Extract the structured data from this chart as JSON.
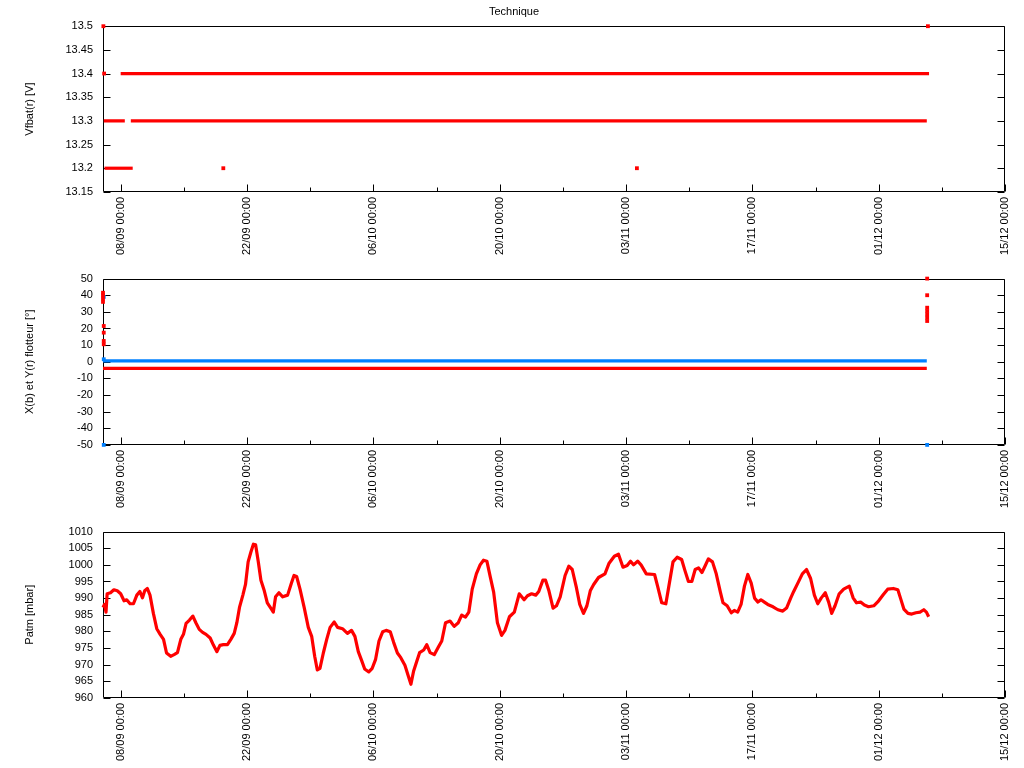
{
  "chart_data": [
    {
      "type": "line",
      "title": "Technique",
      "ylabel": "Vfbat(r) [V]",
      "xlim": [
        "--09-06T01:00",
        "--12-15"
      ],
      "xticks": [
        {
          "value": "--09-08",
          "label": "08/09 00:00"
        },
        {
          "value": "--09-15",
          "label": null
        },
        {
          "value": "--09-22",
          "label": "22/09 00:00"
        },
        {
          "value": "--09-29",
          "label": null
        },
        {
          "value": "--10-06",
          "label": "06/10 00:00"
        },
        {
          "value": "--10-13",
          "label": null
        },
        {
          "value": "--10-20",
          "label": "20/10 00:00"
        },
        {
          "value": "--10-27",
          "label": null
        },
        {
          "value": "--11-03",
          "label": "03/11 00:00"
        },
        {
          "value": "--11-10",
          "label": null
        },
        {
          "value": "--11-17",
          "label": "17/11 00:00"
        },
        {
          "value": "--11-24",
          "label": null
        },
        {
          "value": "--12-01",
          "label": "01/12 00:00"
        },
        {
          "value": "--12-08",
          "label": null
        },
        {
          "value": "--12-15",
          "label": "15/12 00:00"
        }
      ],
      "ylim": [
        13.15,
        13.5
      ],
      "yticks": [
        13.15,
        13.2,
        13.25,
        13.3,
        13.35,
        13.4,
        13.45,
        13.5
      ],
      "series": [
        {
          "type": "line",
          "color": "#ff0000",
          "x": [
            "--09-08T00:00",
            "--12-06T14:00"
          ],
          "values": [
            13.4,
            13.4
          ]
        },
        {
          "type": "line",
          "color": "#ff0000",
          "x": [
            "--09-06T03:00",
            "--09-08T11:00",
            "--09-08T20:00",
            "--09-09T03:00",
            "--12-06T08:00"
          ],
          "values": [
            13.3,
            13.3,
            null,
            13.3,
            13.3
          ]
        },
        {
          "type": "line",
          "color": "#ff0000",
          "x": [
            "--09-06T05:00",
            "--09-09T08:00"
          ],
          "values": [
            13.2,
            13.2
          ]
        },
        {
          "type": "scatter",
          "color": "#ff0000",
          "marker": "square",
          "x": [
            "--09-06T02:00",
            "--09-06T04:00",
            "--09-19T09:00",
            "--11-04T05:00",
            "--12-06T11:00"
          ],
          "values": [
            13.5,
            13.4,
            13.2,
            13.2,
            13.5
          ]
        }
      ]
    },
    {
      "type": "line",
      "ylabel": "X(b) et Y(r) flotteur [°]",
      "xlim": [
        "--09-06T01:00",
        "--12-15"
      ],
      "xticks": [
        {
          "value": "--09-08",
          "label": "08/09 00:00"
        },
        {
          "value": "--09-15",
          "label": null
        },
        {
          "value": "--09-22",
          "label": "22/09 00:00"
        },
        {
          "value": "--09-29",
          "label": null
        },
        {
          "value": "--10-06",
          "label": "06/10 00:00"
        },
        {
          "value": "--10-13",
          "label": null
        },
        {
          "value": "--10-20",
          "label": "20/10 00:00"
        },
        {
          "value": "--10-27",
          "label": null
        },
        {
          "value": "--11-03",
          "label": "03/11 00:00"
        },
        {
          "value": "--11-10",
          "label": null
        },
        {
          "value": "--11-17",
          "label": "17/11 00:00"
        },
        {
          "value": "--11-24",
          "label": null
        },
        {
          "value": "--12-01",
          "label": "01/12 00:00"
        },
        {
          "value": "--12-08",
          "label": null
        },
        {
          "value": "--12-15",
          "label": "15/12 00:00"
        }
      ],
      "ylim": [
        -50,
        50
      ],
      "yticks": [
        -50,
        -40,
        -30,
        -20,
        -10,
        0,
        10,
        20,
        30,
        40,
        50
      ],
      "series": [
        {
          "type": "line",
          "color": "#0080ff",
          "x": [
            "--09-06T01:00",
            "--12-06T08:00"
          ],
          "values": [
            0.5,
            0.5
          ]
        },
        {
          "type": "line",
          "color": "#ff0000",
          "x": [
            "--09-06T01:00",
            "--12-06T08:00"
          ],
          "values": [
            -4,
            -4
          ]
        },
        {
          "type": "scatter",
          "color": "#ff0000",
          "marker": "square",
          "x": [
            "--09-06T01:00",
            "--09-06T01:00",
            "--09-06T01:00",
            "--09-06T01:00",
            "--09-06T03:00",
            "--09-06T03:00",
            "--09-06T03:00",
            "--09-06T03:00",
            "--12-06T09:00",
            "--12-06T09:00",
            "--12-06T09:00",
            "--12-06T09:00",
            "--12-06T09:00",
            "--12-06T09:00",
            "--12-06T09:00"
          ],
          "values": [
            36,
            38,
            40,
            41.5,
            21.5,
            17.5,
            12.5,
            10.5,
            50,
            40,
            32.5,
            30.5,
            28.5,
            26.5,
            24.5
          ]
        },
        {
          "type": "scatter",
          "color": "#0080ff",
          "marker": "square",
          "x": [
            "--09-06T03:00",
            "--09-06T03:00",
            "--09-06T03:00",
            "--12-06T09:00"
          ],
          "values": [
            39,
            1.5,
            -50,
            -50
          ]
        }
      ]
    },
    {
      "type": "line",
      "ylabel": "Patm [mbar]",
      "xlim": [
        "--09-06T01:00",
        "--12-15"
      ],
      "xticks": [
        {
          "value": "--09-08",
          "label": "08/09 00:00"
        },
        {
          "value": "--09-15",
          "label": null
        },
        {
          "value": "--09-22",
          "label": "22/09 00:00"
        },
        {
          "value": "--09-29",
          "label": null
        },
        {
          "value": "--10-06",
          "label": "06/10 00:00"
        },
        {
          "value": "--10-13",
          "label": null
        },
        {
          "value": "--10-20",
          "label": "20/10 00:00"
        },
        {
          "value": "--10-27",
          "label": null
        },
        {
          "value": "--11-03",
          "label": "03/11 00:00"
        },
        {
          "value": "--11-10",
          "label": null
        },
        {
          "value": "--11-17",
          "label": "17/11 00:00"
        },
        {
          "value": "--11-24",
          "label": null
        },
        {
          "value": "--12-01",
          "label": "01/12 00:00"
        },
        {
          "value": "--12-08",
          "label": null
        },
        {
          "value": "--12-15",
          "label": "15/12 00:00"
        }
      ],
      "ylim": [
        960,
        1010
      ],
      "yticks": [
        960,
        965,
        970,
        975,
        980,
        985,
        990,
        995,
        1000,
        1005,
        1010
      ],
      "color": "#ff0000",
      "x": [
        "--09-06T01:00",
        "--09-06T05:00",
        "--09-06T09:00",
        "--09-06T12:00",
        "--09-06T21:00",
        "--09-07T06:00",
        "--09-07T15:00",
        "--09-08T00:00",
        "--09-08T09:00",
        "--09-08T16:00",
        "--09-09T01:00",
        "--09-09T10:00",
        "--09-09T19:00",
        "--09-10T03:00",
        "--09-10T10:00",
        "--09-10T16:00",
        "--09-10T23:00",
        "--09-11T06:00",
        "--09-11T15:00",
        "--09-12T00:00",
        "--09-12T09:00",
        "--09-12T18:00",
        "--09-13T02:00",
        "--09-13T13:00",
        "--09-13T22:00",
        "--09-14T07:00",
        "--09-14T16:00",
        "--09-14T23:00",
        "--09-15T06:00",
        "--09-15T15:00",
        "--09-16T00:00",
        "--09-16T08:00",
        "--09-16T17:00",
        "--09-17T02:00",
        "--09-17T11:00",
        "--09-17T22:00",
        "--09-18T07:00",
        "--09-18T16:00",
        "--09-19T00:00",
        "--09-19T09:00",
        "--09-19T20:00",
        "--09-20T05:00",
        "--09-20T14:00",
        "--09-20T21:00",
        "--09-21T04:00",
        "--09-21T13:00",
        "--09-21T20:00",
        "--09-22T03:00",
        "--09-22T10:00",
        "--09-22T17:00",
        "--09-22T23:00",
        "--09-23T06:00",
        "--09-23T13:00",
        "--09-23T22:00",
        "--09-24T06:00",
        "--09-24T17:00",
        "--09-24T22:00",
        "--09-25T04:00",
        "--09-25T13:00",
        "--09-25T23:00",
        "--09-26T12:00",
        "--09-26T22:00",
        "--09-27T05:00",
        "--09-27T12:00",
        "--09-27T21:00",
        "--09-28T08:00",
        "--09-28T19:00",
        "--09-29T04:00",
        "--09-29T12:00",
        "--09-29T19:00",
        "--09-30T02:00",
        "--09-30T11:00",
        "--09-30T20:00",
        "--10-01T05:00",
        "--10-01T16:00",
        "--10-02T01:00",
        "--10-02T14:00",
        "--10-03T03:00",
        "--10-03T14:00",
        "--10-03T23:00",
        "--10-04T08:00",
        "--10-04T17:00",
        "--10-05T01:00",
        "--10-05T12:00",
        "--10-05T21:00",
        "--10-06T06:00",
        "--10-06T15:00",
        "--10-07T01:00",
        "--10-07T10:00",
        "--10-07T21:00",
        "--10-08T06:00",
        "--10-08T16:00",
        "--10-09T01:00",
        "--10-09T12:00",
        "--10-09T21:00",
        "--10-10T04:00",
        "--10-10T11:00",
        "--10-10T20:00",
        "--10-11T03:00",
        "--10-11T14:00",
        "--10-11T22:00",
        "--10-12T07:00",
        "--10-12T18:00",
        "--10-13T05:00",
        "--10-13T14:00",
        "--10-14T00:00",
        "--10-14T12:00",
        "--10-14T23:00",
        "--10-15T10:00",
        "--10-15T19:00",
        "--10-16T05:00",
        "--10-16T14:00",
        "--10-16T23:00",
        "--10-17T10:00",
        "--10-17T20:00",
        "--10-18T05:00",
        "--10-18T14:00",
        "--10-18T23:00",
        "--10-19T08:00",
        "--10-19T18:00",
        "--10-20T05:00",
        "--10-20T14:00",
        "--10-21T02:00",
        "--10-21T15:00",
        "--10-22T04:00",
        "--10-22T17:00",
        "--10-23T02:00",
        "--10-23T13:00",
        "--10-24T00:00",
        "--10-24T08:00",
        "--10-24T19:00",
        "--10-25T02:00",
        "--10-25T11:00",
        "--10-25T22:00",
        "--10-26T07:00",
        "--10-26T17:00",
        "--10-27T06:00",
        "--10-27T16:00",
        "--10-28T01:00",
        "--10-28T12:00",
        "--10-28T21:00",
        "--10-29T07:00",
        "--10-29T16:00",
        "--10-30T01:00",
        "--10-30T10:00",
        "--10-30T23:00",
        "--10-31T16:00",
        "--11-01T03:00",
        "--11-01T17:00",
        "--11-02T04:00",
        "--11-02T16:00",
        "--11-03T03:00",
        "--11-03T12:00",
        "--11-03T20:00",
        "--11-04T07:00",
        "--11-04T16:00",
        "--11-05T06:00",
        "--11-06T04:00",
        "--11-06T12:00",
        "--11-06T23:00",
        "--11-07T10:00",
        "--11-07T18:00",
        "--11-08T05:00",
        "--11-08T16:00",
        "--11-09T04:00",
        "--11-09T13:00",
        "--11-09T22:00",
        "--11-10T07:00",
        "--11-10T16:00",
        "--11-11T01:00",
        "--11-11T10:00",
        "--11-11T18:00",
        "--11-12T03:00",
        "--11-12T14:00",
        "--11-13T00:00",
        "--11-13T11:00",
        "--11-13T18:00",
        "--11-14T05:00",
        "--11-14T16:00",
        "--11-15T00:00",
        "--11-15T09:00",
        "--11-15T18:00",
        "--11-16T03:00",
        "--11-16T12:00",
        "--11-16T21:00",
        "--11-17T06:00",
        "--11-17T15:00",
        "--11-17T23:00",
        "--11-18T08:00",
        "--11-18T17:00",
        "--11-19T07:00",
        "--11-19T20:00",
        "--11-20T09:00",
        "--11-20T19:00",
        "--11-21T06:00",
        "--11-21T14:00",
        "--11-22T01:00",
        "--11-22T13:00",
        "--11-23T00:00",
        "--11-23T11:00",
        "--11-23T21:00",
        "--11-24T06:00",
        "--11-24T15:00",
        "--11-25T02:00",
        "--11-25T11:00",
        "--11-25T19:00",
        "--11-26T04:00",
        "--11-26T15:00",
        "--11-27T03:00",
        "--11-27T18:00",
        "--11-28T04:00",
        "--11-28T13:00",
        "--11-29T00:00",
        "--11-29T10:00",
        "--11-29T21:00",
        "--11-30T11:00",
        "--12-01T00:00",
        "--12-01T12:00",
        "--12-02T00:00",
        "--12-02T15:00",
        "--12-03T03:00",
        "--12-03T10:00",
        "--12-03T19:00",
        "--12-04T06:00",
        "--12-04T16:00",
        "--12-05T03:00",
        "--12-05T14:00",
        "--12-06T00:00",
        "--12-06T07:00",
        "--12-06T13:00"
      ],
      "values": [
        987.2,
        988.1,
        985.8,
        991.3,
        991.6,
        992.5,
        992.2,
        991.3,
        989.2,
        989.5,
        988.3,
        988.3,
        990.9,
        992.0,
        990.1,
        992.2,
        992.9,
        990.9,
        985.4,
        980.8,
        979.1,
        977.6,
        973.5,
        972.5,
        973.0,
        973.6,
        977.6,
        979.1,
        982.4,
        983.4,
        984.6,
        982.6,
        980.6,
        979.7,
        979.1,
        978.0,
        975.8,
        973.9,
        975.8,
        976.0,
        976.0,
        977.6,
        979.4,
        982.6,
        987.2,
        990.9,
        994.1,
        1000.9,
        1003.7,
        1006.2,
        1006.0,
        1000.9,
        995.4,
        992.2,
        988.6,
        986.7,
        985.8,
        990.4,
        991.6,
        990.4,
        990.9,
        994.5,
        996.8,
        996.5,
        992.7,
        987.2,
        981.2,
        978.5,
        972.5,
        968.4,
        968.9,
        973.5,
        977.6,
        981.2,
        982.8,
        981.2,
        980.8,
        979.4,
        980.3,
        978.5,
        973.9,
        971.2,
        968.7,
        967.8,
        968.9,
        971.6,
        977.1,
        979.9,
        980.3,
        979.9,
        976.7,
        973.5,
        972.1,
        969.8,
        966.6,
        964.1,
        968.0,
        971.2,
        973.6,
        974.4,
        976.0,
        973.6,
        973.0,
        975.3,
        977.1,
        982.6,
        983.1,
        981.5,
        982.6,
        984.9,
        984.3,
        985.8,
        992.7,
        997.3,
        1000.0,
        1001.4,
        1001.1,
        996.4,
        991.8,
        982.6,
        978.8,
        980.3,
        984.4,
        985.8,
        991.3,
        989.5,
        990.7,
        991.3,
        990.9,
        992.0,
        995.4,
        995.4,
        992.2,
        987.0,
        987.7,
        990.4,
        996.8,
        999.6,
        998.6,
        993.2,
        988.1,
        985.4,
        987.7,
        992.2,
        994.1,
        996.2,
        997.3,
        1000.5,
        1002.6,
        1003.2,
        999.3,
        999.8,
        1001.1,
        1000.0,
        1001.1,
        1000.0,
        997.3,
        997.1,
        993.6,
        988.6,
        988.3,
        993.6,
        1000.9,
        1002.3,
        1001.6,
        998.2,
        995.0,
        995.0,
        998.6,
        999.1,
        997.7,
        999.6,
        1001.8,
        1000.9,
        997.3,
        991.8,
        988.6,
        987.7,
        985.6,
        986.3,
        985.8,
        988.1,
        993.6,
        997.1,
        994.5,
        990.0,
        988.8,
        989.5,
        988.8,
        988.1,
        987.4,
        986.5,
        986.1,
        987.0,
        990.0,
        992.0,
        994.5,
        997.3,
        998.6,
        995.9,
        990.9,
        988.3,
        990.0,
        991.6,
        988.8,
        985.4,
        987.7,
        991.3,
        992.7,
        993.6,
        990.1,
        988.6,
        988.8,
        987.9,
        987.4,
        987.7,
        989.2,
        991.0,
        992.7,
        992.9,
        992.5,
        990.0,
        986.7,
        985.4,
        985.2,
        985.6,
        985.8,
        986.5,
        985.8,
        984.4
      ]
    }
  ]
}
